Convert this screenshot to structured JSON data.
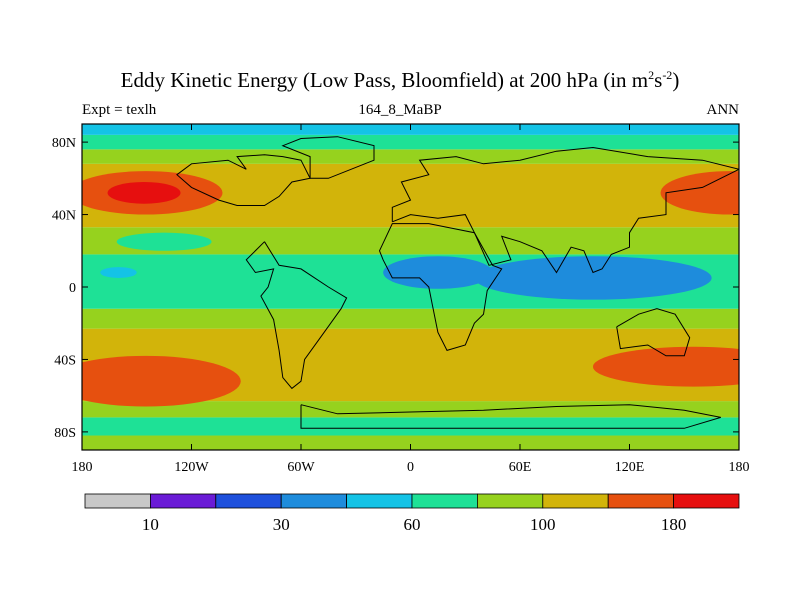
{
  "chart_data": {
    "type": "heatmap",
    "title_prefix": "Eddy Kinetic Energy (Low Pass, Bloomfield) at 200 hPa (in m",
    "title_sup1": "2",
    "title_mid": "s",
    "title_sup2": "-2",
    "title_suffix": ")",
    "left_label": "Expt = texlh",
    "center_label": "164_8_MaBP",
    "right_label": "ANN",
    "xlim": [
      -180,
      180
    ],
    "ylim": [
      -90,
      90
    ],
    "x_ticks": [
      {
        "value": -180,
        "label": "180"
      },
      {
        "value": -120,
        "label": "120W"
      },
      {
        "value": -60,
        "label": "60W"
      },
      {
        "value": 0,
        "label": "0"
      },
      {
        "value": 60,
        "label": "60E"
      },
      {
        "value": 120,
        "label": "120E"
      },
      {
        "value": 180,
        "label": "180"
      }
    ],
    "y_ticks": [
      {
        "value": 80,
        "label": "80N"
      },
      {
        "value": 40,
        "label": "40N"
      },
      {
        "value": 0,
        "label": "0"
      },
      {
        "value": -40,
        "label": "40S"
      },
      {
        "value": -80,
        "label": "80S"
      }
    ],
    "colorbar": {
      "colors": [
        "#c8c8c8",
        "#6a1bd6",
        "#1e50dc",
        "#1e8cdc",
        "#14c3e6",
        "#1ee196",
        "#96d21e",
        "#d2b40a",
        "#e6500f",
        "#e60f0f"
      ],
      "labels": [
        {
          "boundary": 1,
          "text": "10"
        },
        {
          "boundary": 3,
          "text": "30"
        },
        {
          "boundary": 5,
          "text": "60"
        },
        {
          "boundary": 7,
          "text": "100"
        },
        {
          "boundary": 9,
          "text": "180"
        }
      ]
    },
    "bands": [
      {
        "lat": [
          -90,
          -82
        ],
        "level": 6
      },
      {
        "lat": [
          -82,
          -72
        ],
        "level": 5
      },
      {
        "lat": [
          -72,
          -63
        ],
        "level": 6
      },
      {
        "lat": [
          -63,
          -23
        ],
        "level": 7
      },
      {
        "lat": [
          -23,
          -12
        ],
        "level": 6
      },
      {
        "lat": [
          -12,
          18
        ],
        "level": 5
      },
      {
        "lat": [
          18,
          33
        ],
        "level": 6
      },
      {
        "lat": [
          33,
          68
        ],
        "level": 7
      },
      {
        "lat": [
          68,
          76
        ],
        "level": 6
      },
      {
        "lat": [
          76,
          84
        ],
        "level": 5
      },
      {
        "lat": [
          84,
          90
        ],
        "level": 4
      }
    ],
    "patches": [
      {
        "lon": -145,
        "lat": 52,
        "rlon": 42,
        "rlat": 12,
        "level": 8
      },
      {
        "lon": -146,
        "lat": 52,
        "rlon": 20,
        "rlat": 6,
        "level": 9
      },
      {
        "lon": 175,
        "lat": 52,
        "rlon": 38,
        "rlat": 12,
        "level": 8
      },
      {
        "lon": -145,
        "lat": -52,
        "rlon": 52,
        "rlat": 14,
        "level": 8
      },
      {
        "lon": 155,
        "lat": -44,
        "rlon": 55,
        "rlat": 11,
        "level": 8
      },
      {
        "lon": -135,
        "lat": 25,
        "rlon": 26,
        "rlat": 5,
        "level": 5
      },
      {
        "lon": 100,
        "lat": 5,
        "rlon": 65,
        "rlat": 12,
        "level": 3
      },
      {
        "lon": 15,
        "lat": 8,
        "rlon": 30,
        "rlat": 9,
        "level": 3
      },
      {
        "lon": -160,
        "lat": 8,
        "rlon": 10,
        "rlat": 3,
        "level": 4
      }
    ],
    "coastlines": [
      [
        [
          -90,
          65
        ],
        [
          -95,
          72
        ],
        [
          -80,
          73
        ],
        [
          -70,
          72
        ],
        [
          -60,
          70
        ],
        [
          -55,
          60
        ],
        [
          -65,
          58
        ],
        [
          -72,
          50
        ],
        [
          -80,
          45
        ],
        [
          -95,
          45
        ],
        [
          -105,
          48
        ],
        [
          -120,
          55
        ],
        [
          -128,
          62
        ],
        [
          -120,
          68
        ],
        [
          -100,
          70
        ],
        [
          -90,
          65
        ]
      ],
      [
        [
          -80,
          25
        ],
        [
          -90,
          15
        ],
        [
          -85,
          8
        ],
        [
          -75,
          10
        ],
        [
          -78,
          0
        ],
        [
          -82,
          -5
        ],
        [
          -75,
          -18
        ],
        [
          -72,
          -35
        ],
        [
          -70,
          -50
        ],
        [
          -65,
          -56
        ],
        [
          -60,
          -52
        ],
        [
          -58,
          -40
        ],
        [
          -48,
          -26
        ],
        [
          -38,
          -12
        ],
        [
          -35,
          -6
        ],
        [
          -45,
          0
        ],
        [
          -60,
          10
        ],
        [
          -72,
          12
        ],
        [
          -80,
          25
        ]
      ],
      [
        [
          -15,
          15
        ],
        [
          -10,
          5
        ],
        [
          5,
          5
        ],
        [
          10,
          0
        ],
        [
          12,
          -10
        ],
        [
          15,
          -25
        ],
        [
          20,
          -35
        ],
        [
          30,
          -32
        ],
        [
          35,
          -20
        ],
        [
          40,
          -15
        ],
        [
          42,
          -2
        ],
        [
          50,
          10
        ],
        [
          45,
          12
        ],
        [
          35,
          30
        ],
        [
          10,
          35
        ],
        [
          -10,
          35
        ],
        [
          -17,
          20
        ],
        [
          -15,
          15
        ]
      ],
      [
        [
          -10,
          36
        ],
        [
          -10,
          44
        ],
        [
          0,
          48
        ],
        [
          -5,
          58
        ],
        [
          10,
          62
        ],
        [
          5,
          70
        ],
        [
          25,
          72
        ],
        [
          40,
          68
        ],
        [
          60,
          70
        ],
        [
          80,
          75
        ],
        [
          100,
          77
        ],
        [
          130,
          72
        ],
        [
          160,
          70
        ],
        [
          180,
          65
        ],
        [
          170,
          60
        ],
        [
          160,
          55
        ],
        [
          140,
          52
        ],
        [
          140,
          40
        ],
        [
          125,
          38
        ],
        [
          120,
          30
        ],
        [
          120,
          22
        ],
        [
          110,
          18
        ],
        [
          105,
          10
        ],
        [
          100,
          8
        ],
        [
          95,
          20
        ],
        [
          88,
          22
        ],
        [
          80,
          8
        ],
        [
          72,
          20
        ],
        [
          60,
          25
        ],
        [
          50,
          28
        ],
        [
          55,
          15
        ],
        [
          43,
          12
        ],
        [
          35,
          30
        ],
        [
          30,
          40
        ],
        [
          15,
          38
        ],
        [
          0,
          40
        ],
        [
          -10,
          36
        ]
      ],
      [
        [
          113,
          -22
        ],
        [
          115,
          -34
        ],
        [
          130,
          -32
        ],
        [
          140,
          -38
        ],
        [
          150,
          -38
        ],
        [
          153,
          -28
        ],
        [
          145,
          -15
        ],
        [
          135,
          -12
        ],
        [
          125,
          -15
        ],
        [
          113,
          -22
        ]
      ],
      [
        [
          -60,
          -65
        ],
        [
          -40,
          -70
        ],
        [
          0,
          -69
        ],
        [
          40,
          -68
        ],
        [
          80,
          -66
        ],
        [
          120,
          -65
        ],
        [
          150,
          -68
        ],
        [
          170,
          -72
        ],
        [
          150,
          -78
        ],
        [
          60,
          -78
        ],
        [
          -20,
          -78
        ],
        [
          -60,
          -78
        ],
        [
          -60,
          -65
        ]
      ],
      [
        [
          -55,
          60
        ],
        [
          -45,
          60
        ],
        [
          -20,
          70
        ],
        [
          -20,
          78
        ],
        [
          -40,
          83
        ],
        [
          -60,
          82
        ],
        [
          -70,
          78
        ],
        [
          -55,
          72
        ],
        [
          -55,
          60
        ]
      ]
    ]
  }
}
